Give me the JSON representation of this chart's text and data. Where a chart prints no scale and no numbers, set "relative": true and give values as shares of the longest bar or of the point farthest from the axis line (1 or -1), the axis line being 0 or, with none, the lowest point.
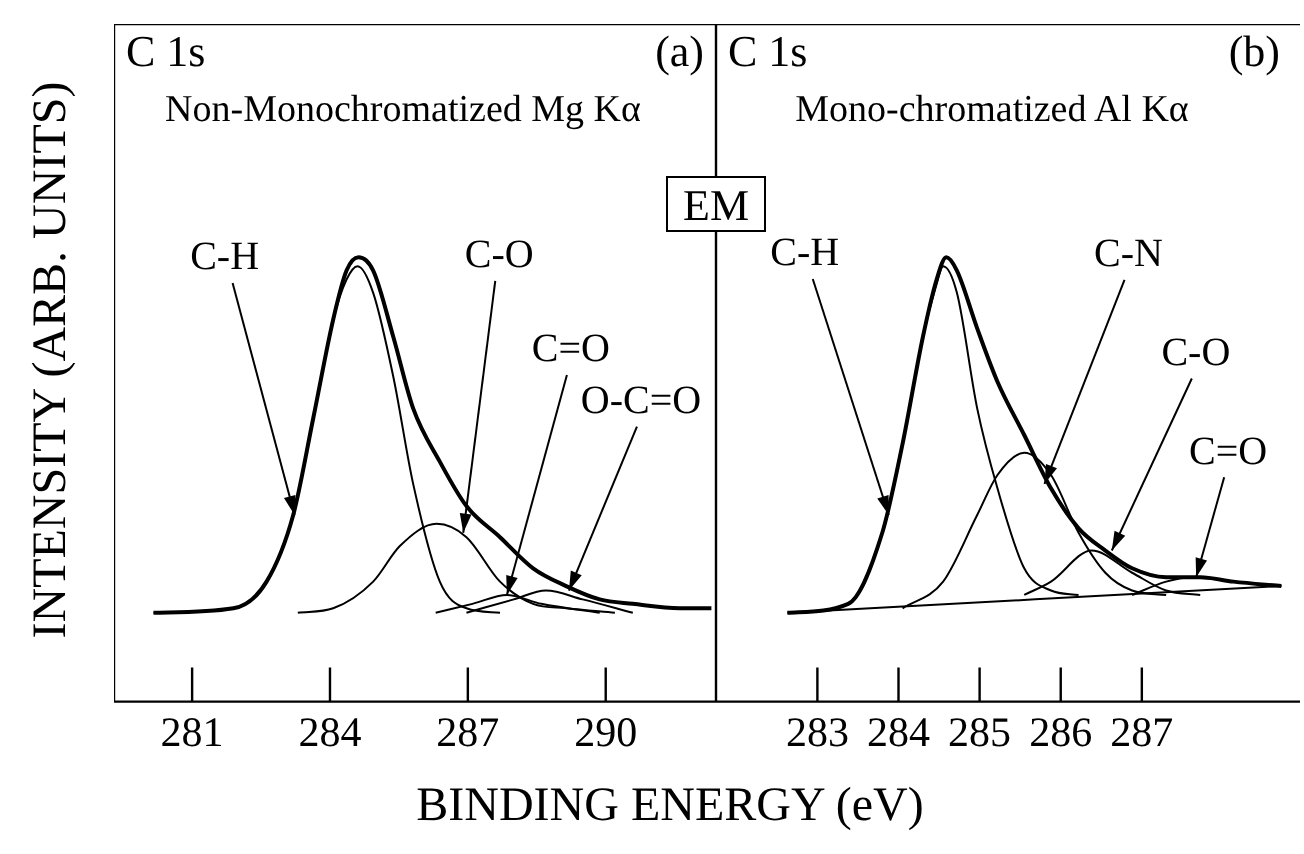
{
  "chart_data": [
    {
      "type": "line",
      "title": "C 1s",
      "subtitle": "Non-Monochromatized Mg Kα",
      "xlabel": "BINDING ENERGY (eV)",
      "ylabel": "INTENSITY (ARB. UNITS)",
      "relative": true,
      "xlim": [
        279.3,
        292.4
      ],
      "xticks": [
        281,
        284,
        287,
        290
      ],
      "tick_labels": "x",
      "grid": false,
      "legend": false,
      "marker": "none",
      "line_style": "solid",
      "annotations": [
        "(a)",
        "EM",
        {
          "text": "C-H",
          "x": 283.23,
          "y": 0.42
        },
        {
          "text": "C-O",
          "x": 286.9,
          "y": 0.38
        },
        {
          "text": "C=O",
          "x": 287.85,
          "y": 0.24
        },
        {
          "text": "O-C=O",
          "x": 289.2,
          "y": 0.25
        }
      ],
      "series": [
        {
          "color": "#000000",
          "x": [
            280.16,
            281.9,
            282.62,
            283.2,
            283.64,
            284.07,
            284.36,
            284.62,
            284.94,
            285.38,
            285.81,
            286.39,
            286.97,
            287.7,
            288.42,
            289.14,
            289.87,
            290.59,
            291.61,
            292.3
          ],
          "values": [
            0.2,
            0.21,
            0.27,
            0.42,
            0.64,
            0.86,
            0.97,
            1,
            0.97,
            0.82,
            0.66,
            0.54,
            0.44,
            0.37,
            0.3,
            0.26,
            0.23,
            0.22,
            0.21,
            0.21
          ]
        },
        {
          "color": "#000000",
          "x": [
            280.16,
            281.9,
            282.62,
            283.2,
            283.64,
            284.07,
            284.36,
            284.6,
            284.94,
            285.38,
            285.81,
            286.39,
            286.97,
            287.7
          ],
          "values": [
            0.2,
            0.21,
            0.27,
            0.42,
            0.64,
            0.86,
            0.95,
            0.98,
            0.92,
            0.73,
            0.49,
            0.27,
            0.21,
            0.2
          ]
        },
        {
          "color": "#000000",
          "x": [
            283.3,
            284.07,
            284.94,
            285.52,
            286.32,
            286.97,
            287.7,
            288.42,
            289.14,
            290.2
          ],
          "values": [
            0.2,
            0.21,
            0.27,
            0.35,
            0.4,
            0.37,
            0.27,
            0.22,
            0.21,
            0.2
          ]
        },
        {
          "color": "#000000",
          "x": [
            286.3,
            287.1,
            287.85,
            288.6,
            289.87
          ],
          "values": [
            0.2,
            0.22,
            0.24,
            0.22,
            0.2
          ]
        },
        {
          "color": "#000000",
          "x": [
            286.97,
            288,
            288.7,
            289.5,
            290.59
          ],
          "values": [
            0.2,
            0.23,
            0.25,
            0.23,
            0.2
          ]
        }
      ]
    },
    {
      "type": "line",
      "title": "C 1s",
      "subtitle": "Mono-chromatized Al Kα",
      "relative": true,
      "xlim": [
        281.75,
        288.95
      ],
      "xticks": [
        283,
        284,
        285,
        286,
        287
      ],
      "tick_labels": "x",
      "grid": false,
      "legend": false,
      "marker": "none",
      "line_style": "solid",
      "annotations": [
        "(b)",
        {
          "text": "C-H",
          "x": 283.88,
          "y": 0.42
        },
        {
          "text": "C-N",
          "x": 285.8,
          "y": 0.49
        },
        {
          "text": "C-O",
          "x": 286.63,
          "y": 0.34
        },
        {
          "text": "C=O",
          "x": 287.67,
          "y": 0.28
        }
      ],
      "series": [
        {
          "color": "#000000",
          "x": [
            282.63,
            283.38,
            283.8,
            284.05,
            284.3,
            284.47,
            284.59,
            284.72,
            284.97,
            285.22,
            285.55,
            285.88,
            286.22,
            286.55,
            286.88,
            287.3,
            287.72,
            288.13,
            288.72
          ],
          "values": [
            0.2,
            0.22,
            0.38,
            0.58,
            0.82,
            0.95,
            1,
            0.97,
            0.84,
            0.72,
            0.6,
            0.48,
            0.39,
            0.34,
            0.3,
            0.28,
            0.28,
            0.27,
            0.26
          ]
        },
        {
          "color": "#000000",
          "x": [
            282.7,
            283.38,
            283.8,
            284.05,
            284.3,
            284.47,
            284.55,
            284.72,
            284.97,
            285.22,
            285.55,
            285.88,
            286.22
          ],
          "values": [
            0.2,
            0.22,
            0.38,
            0.58,
            0.82,
            0.94,
            0.98,
            0.92,
            0.66,
            0.48,
            0.3,
            0.25,
            0.24
          ]
        },
        {
          "color": "#000000",
          "x": [
            284.05,
            284.55,
            284.97,
            285.22,
            285.55,
            285.88,
            286.22,
            286.55,
            286.88,
            287.3
          ],
          "values": [
            0.21,
            0.27,
            0.42,
            0.51,
            0.56,
            0.51,
            0.38,
            0.29,
            0.25,
            0.24
          ]
        },
        {
          "color": "#000000",
          "x": [
            285.55,
            285.88,
            286.38,
            286.88,
            287.3,
            287.72
          ],
          "values": [
            0.24,
            0.27,
            0.34,
            0.29,
            0.25,
            0.24
          ]
        },
        {
          "color": "#000000",
          "x": [
            286.88,
            287.3,
            287.63,
            288.13,
            288.72
          ],
          "values": [
            0.24,
            0.27,
            0.28,
            0.27,
            0.26
          ]
        },
        {
          "color": "#000000",
          "x": [
            282.63,
            288.72
          ],
          "values": [
            0.2,
            0.26
          ]
        }
      ]
    }
  ]
}
